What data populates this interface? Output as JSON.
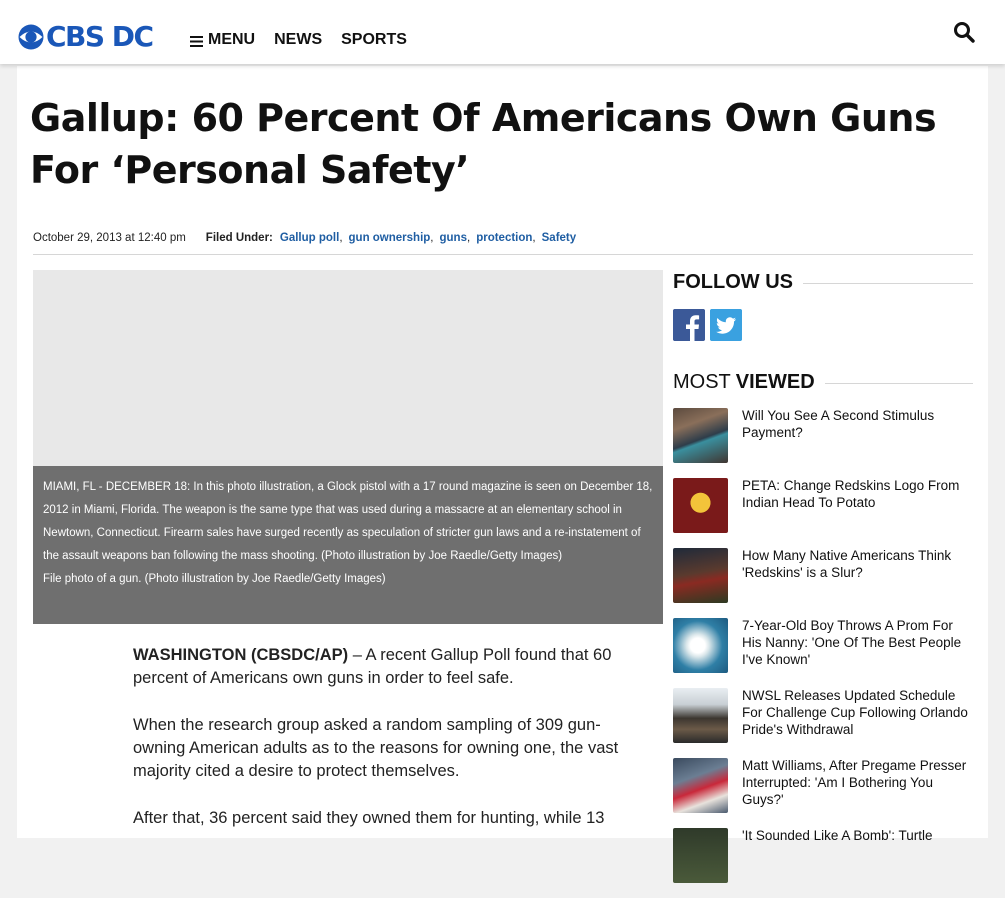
{
  "header": {
    "logo_text": "CBS DC",
    "nav": {
      "menu_label": "MENU",
      "news_label": "NEWS",
      "sports_label": "SPORTS"
    },
    "search_icon": "search-icon"
  },
  "article": {
    "title": "Gallup: 60 Percent Of Americans Own Guns For ‘Personal Safety’",
    "date": "October 29, 2013 at 12:40 pm",
    "filed_under_label": "Filed Under:",
    "tags": [
      "Gallup poll",
      "gun ownership",
      "guns",
      "protection",
      "Safety"
    ],
    "caption_line1": "MIAMI, FL - DECEMBER 18: In this photo illustration, a Glock pistol with a 17 round magazine is seen on December 18, 2012 in Miami, Florida. The weapon is the same type that was used during a massacre at an elementary school in Newtown, Connecticut. Firearm sales have surged recently as speculation of stricter gun laws and a re-instatement of the assault weapons ban following the mass shooting. (Photo illustration by Joe Raedle/Getty Images)",
    "caption_line2": "File photo of a gun. (Photo illustration by Joe Raedle/Getty Images)",
    "dateline": "WASHINGTON (CBSDC/AP)",
    "para1_rest": " – A recent Gallup Poll found that 60 percent of Americans own guns in order to feel safe.",
    "para2": "When the research group asked a random sampling of 309 gun-owning American adults as to the reasons for owning one, the vast majority cited a desire to protect themselves.",
    "para3": "After that, 36 percent said they owned them for hunting, while 13"
  },
  "sidebar": {
    "follow_us": "FOLLOW US",
    "social": [
      "facebook-icon",
      "twitter-icon"
    ],
    "most_label": "MOST",
    "viewed_label": "VIEWED",
    "most_viewed": [
      {
        "title": "Will You See A Second Stimulus Payment?"
      },
      {
        "title": "PETA: Change Redskins Logo From Indian Head To Potato"
      },
      {
        "title": "How Many Native Americans Think 'Redskins' is a Slur?"
      },
      {
        "title": "7-Year-Old Boy Throws A Prom For His Nanny: 'One Of The Best People I've Known'"
      },
      {
        "title": "NWSL Releases Updated Schedule For Challenge Cup Following Orlando Pride's Withdrawal"
      },
      {
        "title": "Matt Williams, After Pregame Presser Interrupted: 'Am I Bothering You Guys?'"
      },
      {
        "title": "'It Sounded Like A Bomb': Turtle"
      }
    ]
  },
  "colors": {
    "brand_blue": "#1a57b8",
    "tag_blue": "#1f5ea3",
    "caption_bg": "#6f6f6f",
    "facebook": "#3b5998",
    "twitter": "#3aa1e0"
  }
}
